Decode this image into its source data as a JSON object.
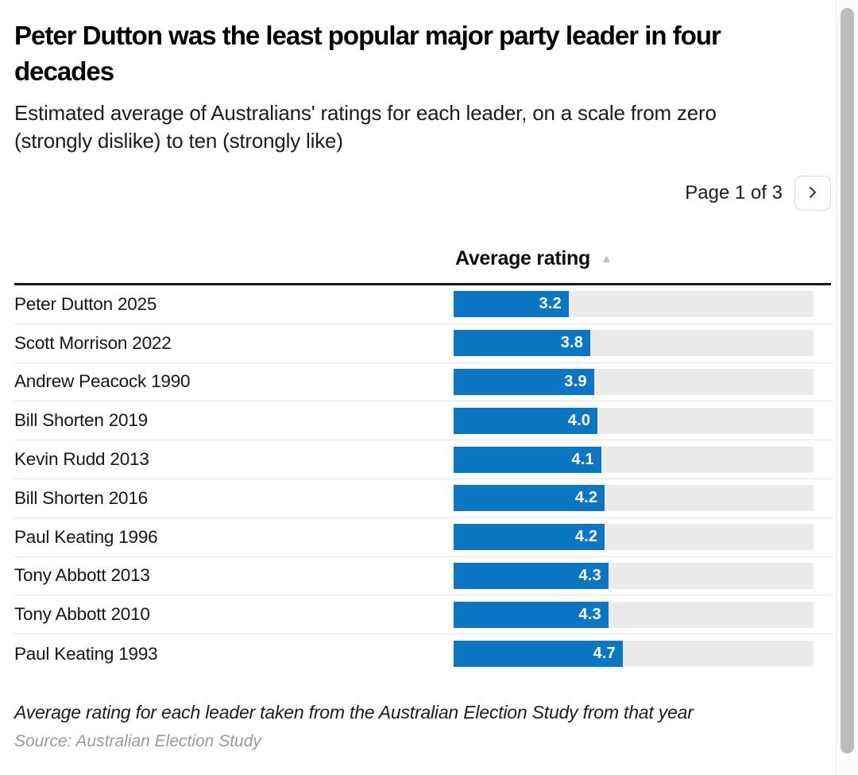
{
  "header": {
    "title": "Peter Dutton was the least popular major party leader in four decades",
    "title_lines": [
      "Peter Dutton was the least popular major party leader in four",
      "decades"
    ],
    "subtitle": "Estimated average of Australians' ratings for each leader, on a scale from zero (strongly dislike) to ten (strongly like)",
    "subtitle_lines": [
      "Estimated average of Australians' ratings for each leader, on a scale from zero",
      "(strongly dislike) to ten (strongly like)"
    ]
  },
  "pagination": {
    "label": "Page 1 of 3",
    "next_icon": "chevron-right"
  },
  "chart_data": {
    "type": "bar",
    "orientation": "horizontal",
    "title": "Peter Dutton was the least popular major party leader in four decades",
    "subtitle": "Estimated average of Australians' ratings for each leader, on a scale from zero (strongly dislike) to ten (strongly like)",
    "column_header": "Average rating",
    "sort_order": "ascending",
    "sort_icon": "triangle-up",
    "categories": [
      "Peter Dutton 2025",
      "Scott Morrison 2022",
      "Andrew Peacock 1990",
      "Bill Shorten 2019",
      "Kevin Rudd 2013",
      "Bill Shorten 2016",
      "Paul Keating 1996",
      "Tony Abbott 2013",
      "Tony Abbott 2010",
      "Paul Keating 1993"
    ],
    "values": [
      3.2,
      3.8,
      3.9,
      4.0,
      4.1,
      4.2,
      4.2,
      4.3,
      4.3,
      4.7
    ],
    "value_labels": [
      "3.2",
      "3.8",
      "3.9",
      "4.0",
      "4.1",
      "4.2",
      "4.2",
      "4.3",
      "4.3",
      "4.7"
    ],
    "xlim": [
      0,
      10
    ],
    "grid": false,
    "legend": false,
    "bar_color": "#0b76c4",
    "track_color": "#ebebeb",
    "value_text_color": "#ffffff"
  },
  "footer": {
    "note": "Average rating for each leader taken from the Australian Election Study from that year",
    "source": "Source: Australian Election Study"
  }
}
